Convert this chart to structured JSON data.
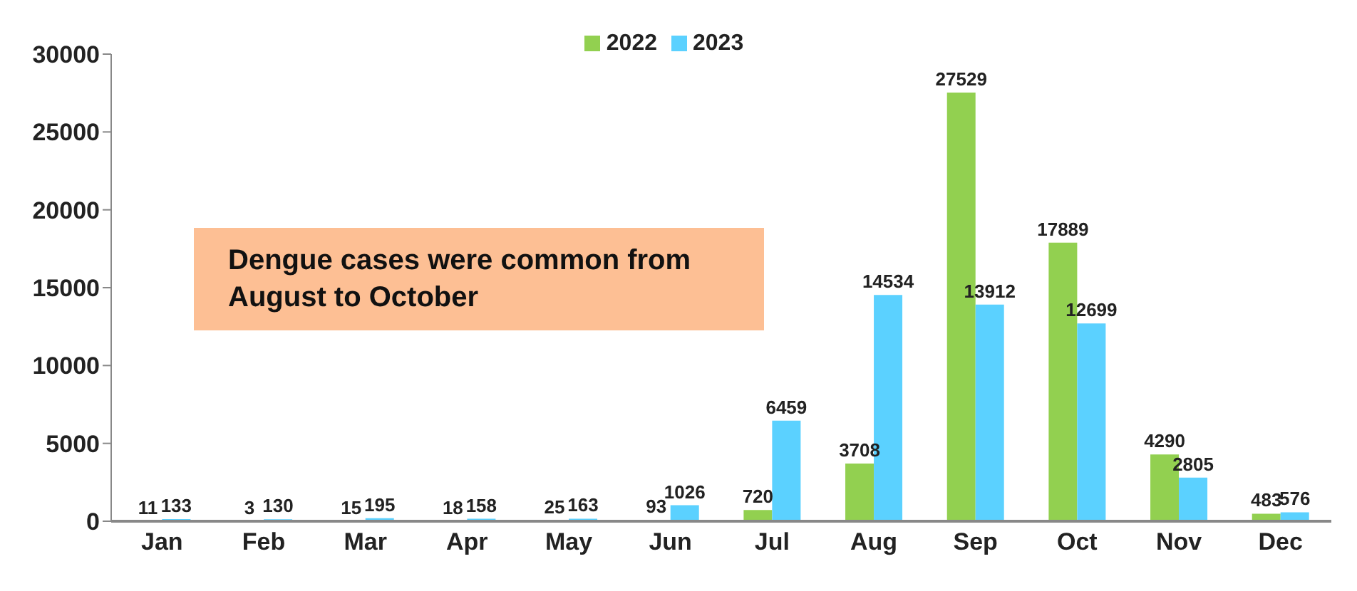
{
  "chart_data": {
    "type": "bar",
    "categories": [
      "Jan",
      "Feb",
      "Mar",
      "Apr",
      "May",
      "Jun",
      "Jul",
      "Aug",
      "Sep",
      "Oct",
      "Nov",
      "Dec"
    ],
    "series": [
      {
        "name": "2022",
        "color": "#92d050",
        "values": [
          11,
          3,
          15,
          18,
          25,
          93,
          720,
          3708,
          27529,
          17889,
          4290,
          483
        ]
      },
      {
        "name": "2023",
        "color": "#5bd1ff",
        "values": [
          133,
          130,
          195,
          158,
          163,
          1026,
          6459,
          14534,
          13912,
          12699,
          2805,
          576
        ]
      }
    ],
    "ylim": [
      0,
      30000
    ],
    "yticks": [
      0,
      5000,
      10000,
      15000,
      20000,
      25000,
      30000
    ],
    "grid": false,
    "legend": "top",
    "data_labels": true,
    "annotations": [
      "Dengue cases were  common from August to October"
    ]
  }
}
